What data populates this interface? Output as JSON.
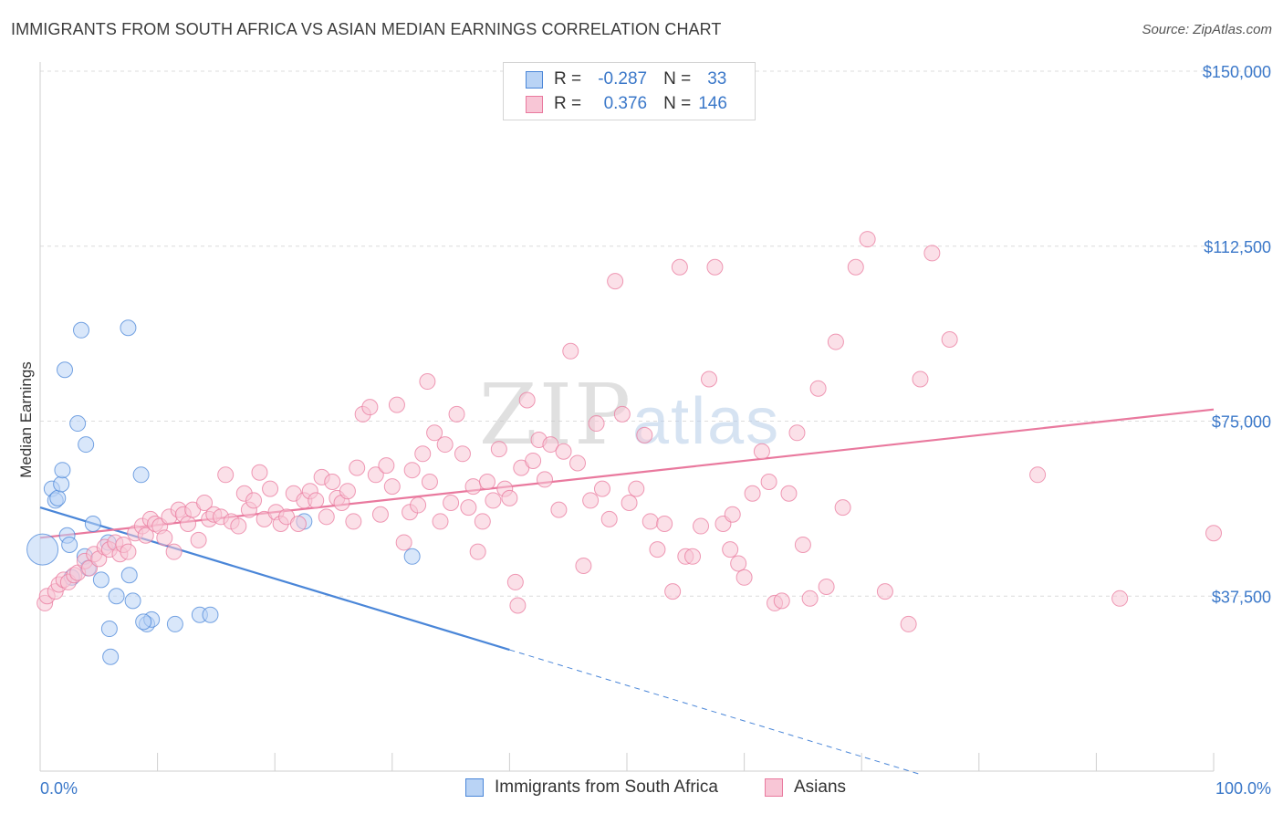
{
  "title": "IMMIGRANTS FROM SOUTH AFRICA VS ASIAN MEDIAN EARNINGS CORRELATION CHART",
  "source": "Source: ZipAtlas.com",
  "watermark": "ZIPatlas",
  "legend_box": {
    "rows": [
      {
        "r_label": "R =",
        "r_value": "-0.287",
        "n_label": "N =",
        "n_value": "33",
        "color": "#4a86d8",
        "fill": "#b9d3f5"
      },
      {
        "r_label": "R =",
        "r_value": "0.376",
        "n_label": "N =",
        "n_value": "146",
        "color": "#e9799e",
        "fill": "#f8c6d6"
      }
    ]
  },
  "bottom_legend": [
    {
      "label": "Immigrants from South Africa",
      "color": "#4a86d8",
      "fill": "#b9d3f5"
    },
    {
      "label": "Asians",
      "color": "#e9799e",
      "fill": "#f8c6d6"
    }
  ],
  "chart_data": {
    "type": "scatter",
    "title": "IMMIGRANTS FROM SOUTH AFRICA VS ASIAN MEDIAN EARNINGS CORRELATION CHART",
    "xlabel": "",
    "ylabel": "Median Earnings",
    "xlim": [
      0,
      100
    ],
    "ylim": [
      0,
      150000
    ],
    "x_tick_labels": [
      "0.0%",
      "100.0%"
    ],
    "y_ticks": [
      37500,
      75000,
      112500,
      150000
    ],
    "y_tick_labels": [
      "$37,500",
      "$75,000",
      "$112,500",
      "$150,000"
    ],
    "grid": "horizontal-dashed",
    "legend_position": "top-center",
    "series": [
      {
        "name": "Immigrants from South Africa",
        "color": "#4a86d8",
        "fill": "#b9d3f5",
        "r": -0.287,
        "n": 33,
        "trend": {
          "x0": 0,
          "y0": 56500,
          "x1": 40,
          "y1": 26000,
          "dashed_to_x": 75
        },
        "points": [
          [
            0.2,
            47500,
            "large"
          ],
          [
            1.0,
            60500
          ],
          [
            1.3,
            58000
          ],
          [
            1.5,
            58500
          ],
          [
            1.8,
            61500
          ],
          [
            1.9,
            64500
          ],
          [
            2.1,
            86000
          ],
          [
            2.3,
            50500
          ],
          [
            2.5,
            48500
          ],
          [
            2.7,
            41500
          ],
          [
            3.2,
            74500
          ],
          [
            3.5,
            94500
          ],
          [
            3.8,
            46000
          ],
          [
            3.9,
            70000
          ],
          [
            4.1,
            43500
          ],
          [
            4.5,
            53000
          ],
          [
            5.2,
            41000
          ],
          [
            5.8,
            49000
          ],
          [
            5.9,
            30500
          ],
          [
            6.0,
            24500
          ],
          [
            6.5,
            37500
          ],
          [
            7.5,
            95000
          ],
          [
            7.6,
            42000
          ],
          [
            7.9,
            36500
          ],
          [
            8.6,
            63500
          ],
          [
            9.1,
            31500
          ],
          [
            9.5,
            32500
          ],
          [
            11.5,
            31500
          ],
          [
            13.6,
            33500
          ],
          [
            14.5,
            33500
          ],
          [
            22.5,
            53500
          ],
          [
            31.7,
            46000
          ],
          [
            8.8,
            32000
          ]
        ]
      },
      {
        "name": "Asians",
        "color": "#e9799e",
        "fill": "#f8c6d6",
        "r": 0.376,
        "n": 146,
        "trend": {
          "x0": 0,
          "y0": 50000,
          "x1": 100,
          "y1": 77500
        },
        "points": [
          [
            0.4,
            36000
          ],
          [
            0.6,
            37500
          ],
          [
            1.3,
            38500
          ],
          [
            1.6,
            40000
          ],
          [
            2.0,
            41000
          ],
          [
            2.4,
            40500
          ],
          [
            2.9,
            42000
          ],
          [
            3.2,
            42500
          ],
          [
            3.8,
            45000
          ],
          [
            4.2,
            43500
          ],
          [
            4.6,
            46500
          ],
          [
            5.0,
            45500
          ],
          [
            5.5,
            48000
          ],
          [
            5.9,
            47500
          ],
          [
            6.4,
            49000
          ],
          [
            6.8,
            46500
          ],
          [
            7.1,
            48500
          ],
          [
            7.5,
            47000
          ],
          [
            8.1,
            51000
          ],
          [
            8.7,
            52500
          ],
          [
            9.0,
            50500
          ],
          [
            9.4,
            54000
          ],
          [
            9.8,
            53000
          ],
          [
            10.2,
            52500
          ],
          [
            10.6,
            50000
          ],
          [
            11.0,
            54500
          ],
          [
            11.4,
            47000
          ],
          [
            11.8,
            56000
          ],
          [
            12.2,
            55000
          ],
          [
            12.6,
            53000
          ],
          [
            13.0,
            56000
          ],
          [
            13.5,
            49500
          ],
          [
            14.0,
            57500
          ],
          [
            14.4,
            54000
          ],
          [
            14.8,
            55000
          ],
          [
            15.4,
            54500
          ],
          [
            15.8,
            63500
          ],
          [
            16.3,
            53500
          ],
          [
            16.9,
            52500
          ],
          [
            17.4,
            59500
          ],
          [
            17.8,
            56000
          ],
          [
            18.2,
            58000
          ],
          [
            18.7,
            64000
          ],
          [
            19.1,
            54000
          ],
          [
            19.6,
            60500
          ],
          [
            20.1,
            55500
          ],
          [
            20.5,
            53000
          ],
          [
            21.0,
            54500
          ],
          [
            21.6,
            59500
          ],
          [
            22.0,
            53000
          ],
          [
            22.5,
            58000
          ],
          [
            23.0,
            60000
          ],
          [
            23.5,
            58000
          ],
          [
            24.0,
            63000
          ],
          [
            24.4,
            54500
          ],
          [
            24.9,
            62000
          ],
          [
            25.3,
            58500
          ],
          [
            25.7,
            57500
          ],
          [
            26.2,
            60000
          ],
          [
            26.7,
            53500
          ],
          [
            27.0,
            65000
          ],
          [
            27.5,
            76500
          ],
          [
            28.1,
            78000
          ],
          [
            28.6,
            63500
          ],
          [
            29.0,
            55000
          ],
          [
            29.5,
            65500
          ],
          [
            30.0,
            61000
          ],
          [
            30.4,
            78500
          ],
          [
            31.0,
            49000
          ],
          [
            31.5,
            55500
          ],
          [
            31.7,
            64500
          ],
          [
            32.2,
            57000
          ],
          [
            32.6,
            68000
          ],
          [
            33.2,
            62000
          ],
          [
            33.6,
            72500
          ],
          [
            34.1,
            53500
          ],
          [
            34.5,
            70000
          ],
          [
            35.0,
            57500
          ],
          [
            35.5,
            76500
          ],
          [
            36.0,
            68000
          ],
          [
            36.5,
            56500
          ],
          [
            36.9,
            61000
          ],
          [
            37.3,
            47000
          ],
          [
            37.7,
            53500
          ],
          [
            38.1,
            62000
          ],
          [
            38.6,
            58000
          ],
          [
            39.1,
            69000
          ],
          [
            39.6,
            60500
          ],
          [
            40.0,
            58500
          ],
          [
            40.5,
            40500
          ],
          [
            41.0,
            65000
          ],
          [
            41.5,
            79500
          ],
          [
            42.0,
            66500
          ],
          [
            42.5,
            71000
          ],
          [
            43.0,
            62500
          ],
          [
            43.5,
            70000
          ],
          [
            44.2,
            56000
          ],
          [
            44.6,
            68500
          ],
          [
            45.2,
            90000
          ],
          [
            45.8,
            66000
          ],
          [
            46.3,
            44000
          ],
          [
            46.9,
            58000
          ],
          [
            47.4,
            74500
          ],
          [
            47.9,
            60500
          ],
          [
            48.5,
            54000
          ],
          [
            49.0,
            105000
          ],
          [
            49.6,
            76500
          ],
          [
            50.2,
            57500
          ],
          [
            50.8,
            60500
          ],
          [
            51.5,
            72000
          ],
          [
            52.0,
            53500
          ],
          [
            52.6,
            47500
          ],
          [
            53.2,
            53000
          ],
          [
            53.9,
            38500
          ],
          [
            54.5,
            108000
          ],
          [
            55.0,
            46000
          ],
          [
            55.6,
            46000
          ],
          [
            56.3,
            52500
          ],
          [
            57.0,
            84000
          ],
          [
            57.5,
            108000
          ],
          [
            58.2,
            53000
          ],
          [
            58.8,
            47500
          ],
          [
            59.5,
            44500
          ],
          [
            60.0,
            41500
          ],
          [
            60.7,
            59500
          ],
          [
            61.5,
            68500
          ],
          [
            62.1,
            62000
          ],
          [
            62.6,
            36000
          ],
          [
            63.2,
            36500
          ],
          [
            63.8,
            59500
          ],
          [
            64.5,
            72500
          ],
          [
            65.0,
            48500
          ],
          [
            65.6,
            37000
          ],
          [
            66.3,
            82000
          ],
          [
            67.0,
            39500
          ],
          [
            67.8,
            92000
          ],
          [
            68.4,
            56500
          ],
          [
            69.5,
            108000
          ],
          [
            70.5,
            114000
          ],
          [
            72.0,
            38500
          ],
          [
            74.0,
            31500
          ],
          [
            75.0,
            84000
          ],
          [
            76.0,
            111000
          ],
          [
            77.5,
            92500
          ],
          [
            85.0,
            63500
          ],
          [
            92.0,
            37000
          ],
          [
            100.0,
            51000
          ],
          [
            59.0,
            55000
          ],
          [
            40.7,
            35500
          ],
          [
            33.0,
            83500
          ]
        ]
      }
    ]
  }
}
